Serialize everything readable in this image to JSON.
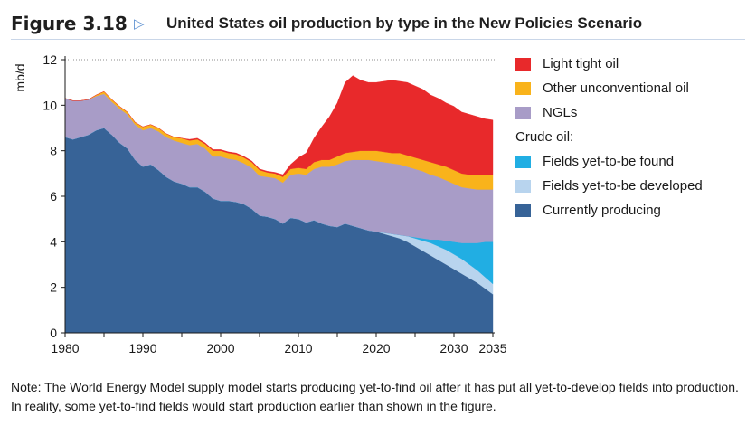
{
  "header": {
    "figure_label": "Figure 3.18",
    "arrow": "▷",
    "title": "United States oil production by type in the New Policies Scenario"
  },
  "legend": {
    "items_top": [
      {
        "label": "Light tight oil",
        "color": "#e8292b"
      },
      {
        "label": "Other unconventional oil",
        "color": "#f9b31b"
      },
      {
        "label": "NGLs",
        "color": "#a89cc7"
      }
    ],
    "heading": "Crude oil:",
    "items_bottom": [
      {
        "label": "Fields yet-to-be found",
        "color": "#21aee3"
      },
      {
        "label": "Fields yet-to-be developed",
        "color": "#b8d4ee"
      },
      {
        "label": "Currently producing",
        "color": "#376397"
      }
    ]
  },
  "note": "Note: The World Energy Model supply model starts producing yet-to-find oil after it has put all yet-to-develop fields into production. In reality, some yet-to-find fields would start production earlier than shown in the figure.",
  "chart_data": {
    "type": "area",
    "stacked": true,
    "ylabel": "mb/d",
    "xlabel": "",
    "xlim": [
      1980,
      2035
    ],
    "ylim": [
      0,
      12
    ],
    "x_ticks": [
      1980,
      1990,
      2000,
      2010,
      2020,
      2030,
      2035
    ],
    "y_ticks": [
      0,
      2,
      4,
      6,
      8,
      10,
      12
    ],
    "grid": "horizontal dotted at 12",
    "x": [
      1980,
      1981,
      1982,
      1983,
      1984,
      1985,
      1986,
      1987,
      1988,
      1989,
      1990,
      1991,
      1992,
      1993,
      1994,
      1995,
      1996,
      1997,
      1998,
      1999,
      2000,
      2001,
      2002,
      2003,
      2004,
      2005,
      2006,
      2007,
      2008,
      2009,
      2010,
      2011,
      2012,
      2013,
      2014,
      2015,
      2016,
      2017,
      2018,
      2019,
      2020,
      2021,
      2022,
      2023,
      2024,
      2025,
      2026,
      2027,
      2028,
      2029,
      2030,
      2031,
      2032,
      2033,
      2034,
      2035
    ],
    "series": [
      {
        "name": "Currently producing",
        "color": "#376397",
        "values": [
          8.6,
          8.5,
          8.6,
          8.7,
          8.9,
          9.0,
          8.7,
          8.35,
          8.1,
          7.6,
          7.3,
          7.4,
          7.15,
          6.85,
          6.65,
          6.55,
          6.4,
          6.4,
          6.2,
          5.9,
          5.8,
          5.8,
          5.75,
          5.65,
          5.45,
          5.15,
          5.1,
          5.0,
          4.8,
          5.05,
          5.0,
          4.85,
          4.95,
          4.8,
          4.7,
          4.65,
          4.8,
          4.7,
          4.6,
          4.5,
          4.45,
          4.35,
          4.25,
          4.15,
          4.0,
          3.8,
          3.6,
          3.4,
          3.2,
          3.0,
          2.8,
          2.6,
          2.4,
          2.2,
          1.95,
          1.7
        ]
      },
      {
        "name": "Fields yet-to-be developed",
        "color": "#b8d4ee",
        "values": [
          0,
          0,
          0,
          0,
          0,
          0,
          0,
          0,
          0,
          0,
          0,
          0,
          0,
          0,
          0,
          0,
          0,
          0,
          0,
          0,
          0,
          0,
          0,
          0,
          0,
          0,
          0,
          0,
          0,
          0,
          0,
          0,
          0,
          0,
          0,
          0,
          0,
          0,
          0,
          0,
          0,
          0.05,
          0.1,
          0.15,
          0.25,
          0.35,
          0.45,
          0.55,
          0.6,
          0.65,
          0.65,
          0.65,
          0.6,
          0.55,
          0.5,
          0.45
        ]
      },
      {
        "name": "Fields yet-to-be found",
        "color": "#21aee3",
        "values": [
          0,
          0,
          0,
          0,
          0,
          0,
          0,
          0,
          0,
          0,
          0,
          0,
          0,
          0,
          0,
          0,
          0,
          0,
          0,
          0,
          0,
          0,
          0,
          0,
          0,
          0,
          0,
          0,
          0,
          0,
          0,
          0,
          0,
          0,
          0,
          0,
          0,
          0,
          0,
          0,
          0,
          0,
          0,
          0,
          0,
          0.05,
          0.1,
          0.15,
          0.3,
          0.4,
          0.55,
          0.7,
          0.95,
          1.2,
          1.55,
          1.85
        ]
      },
      {
        "name": "NGLs",
        "color": "#a89cc7",
        "values": [
          1.7,
          1.7,
          1.6,
          1.55,
          1.5,
          1.5,
          1.45,
          1.5,
          1.5,
          1.55,
          1.6,
          1.6,
          1.7,
          1.75,
          1.8,
          1.8,
          1.85,
          1.9,
          1.9,
          1.85,
          1.95,
          1.85,
          1.85,
          1.8,
          1.8,
          1.75,
          1.75,
          1.8,
          1.8,
          1.9,
          2.0,
          2.1,
          2.25,
          2.5,
          2.6,
          2.75,
          2.75,
          2.9,
          3.0,
          3.1,
          3.1,
          3.1,
          3.1,
          3.1,
          3.05,
          3.0,
          2.95,
          2.85,
          2.75,
          2.65,
          2.55,
          2.45,
          2.4,
          2.35,
          2.3,
          2.3
        ]
      },
      {
        "name": "Other unconventional oil",
        "color": "#f9b31b",
        "values": [
          0,
          0,
          0,
          0,
          0.05,
          0.1,
          0.1,
          0.1,
          0.1,
          0.1,
          0.15,
          0.15,
          0.15,
          0.15,
          0.15,
          0.2,
          0.2,
          0.2,
          0.2,
          0.25,
          0.25,
          0.25,
          0.25,
          0.25,
          0.25,
          0.25,
          0.2,
          0.2,
          0.25,
          0.25,
          0.25,
          0.25,
          0.3,
          0.3,
          0.3,
          0.35,
          0.35,
          0.35,
          0.4,
          0.4,
          0.45,
          0.45,
          0.45,
          0.5,
          0.5,
          0.5,
          0.5,
          0.55,
          0.55,
          0.6,
          0.6,
          0.6,
          0.6,
          0.65,
          0.65,
          0.65
        ]
      },
      {
        "name": "Light tight oil",
        "color": "#e8292b",
        "values": [
          0,
          0,
          0,
          0,
          0,
          0,
          0,
          0,
          0,
          0,
          0,
          0,
          0,
          0,
          0,
          0,
          0.05,
          0.05,
          0.05,
          0.05,
          0.05,
          0.05,
          0.05,
          0.05,
          0.05,
          0.05,
          0.05,
          0.05,
          0.1,
          0.2,
          0.45,
          0.7,
          1.05,
          1.45,
          1.9,
          2.35,
          3.1,
          3.35,
          3.1,
          3.0,
          3.0,
          3.1,
          3.2,
          3.15,
          3.2,
          3.15,
          3.1,
          2.95,
          2.9,
          2.8,
          2.8,
          2.7,
          2.65,
          2.55,
          2.45,
          2.4
        ]
      }
    ]
  }
}
